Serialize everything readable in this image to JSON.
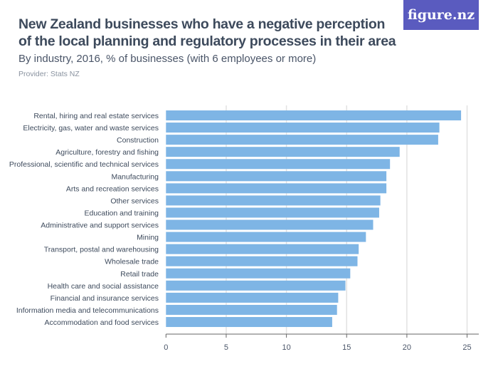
{
  "logo_text": "figure.nz",
  "chart_data": {
    "type": "bar",
    "orientation": "horizontal",
    "title": "New Zealand businesses who have a negative perception of the local planning and regulatory processes in their area",
    "subtitle": "By industry, 2016, % of businesses (with 6 employees or more)",
    "provider": "Provider: Stats NZ",
    "categories": [
      "Rental, hiring and real estate services",
      "Electricity, gas, water and waste services",
      "Construction",
      "Agriculture, forestry and fishing",
      "Professional, scientific and technical services",
      "Manufacturing",
      "Arts and recreation services",
      "Other services",
      "Education and training",
      "Administrative and support services",
      "Mining",
      "Transport, postal and warehousing",
      "Wholesale trade",
      "Retail trade",
      "Health care and social assistance",
      "Financial and insurance services",
      "Information media and telecommunications",
      "Accommodation and food services"
    ],
    "values": [
      24.5,
      22.7,
      22.6,
      19.4,
      18.6,
      18.3,
      18.3,
      17.8,
      17.7,
      17.2,
      16.6,
      16.0,
      15.9,
      15.3,
      14.9,
      14.3,
      14.2,
      13.8
    ],
    "xlim": [
      0,
      26
    ],
    "xticks": [
      0,
      5,
      10,
      15,
      20,
      25
    ],
    "grid": true,
    "bar_color": "#7eb5e5"
  }
}
